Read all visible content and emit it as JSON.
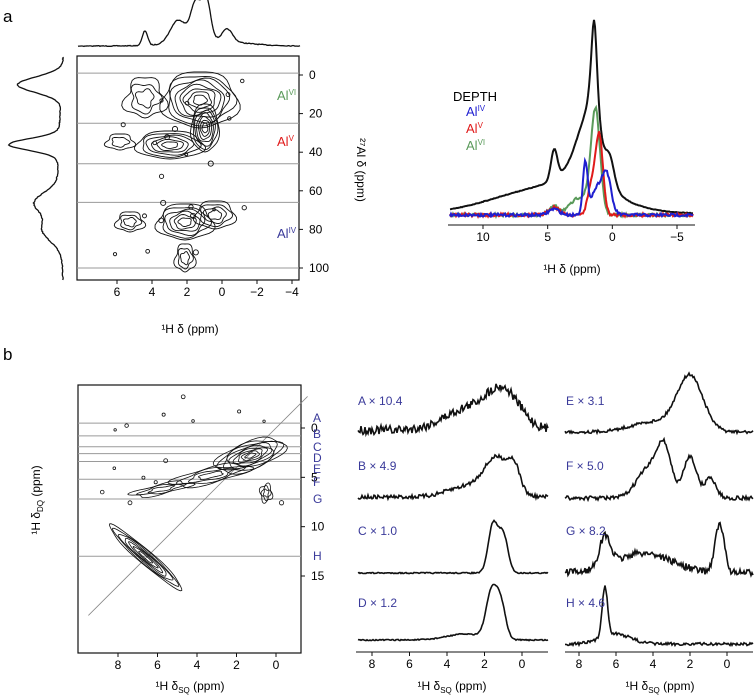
{
  "colors": {
    "black": "#111111",
    "grey": "#9a9a9a",
    "navy": "#3a3a9a",
    "blue": "#1f1fd0",
    "red": "#e01a1a",
    "green": "#5a9a5a"
  },
  "panel_a": {
    "label": "a",
    "x_label": "¹H δ (ppm)",
    "y_label": "²⁷Al δ (ppm)",
    "x_ticks": [
      "6",
      "4",
      "2",
      "0",
      "−2",
      "−4"
    ],
    "y_ticks": [
      "0",
      "20",
      "40",
      "60",
      "80",
      "100"
    ],
    "contour_labels": [
      {
        "base": "Al",
        "sup": "VI",
        "color": "#5a9a5a"
      },
      {
        "base": "Al",
        "sup": "V",
        "color": "#e01a1a"
      },
      {
        "base": "Al",
        "sup": "IV",
        "color": "#3a3a9a"
      }
    ],
    "slice_positions_ppm": [
      -1,
      25,
      46,
      66,
      100
    ]
  },
  "panel_a_spectra": {
    "x_label": "¹H δ (ppm)",
    "x_ticks": [
      "10",
      "5",
      "0",
      "−5"
    ],
    "legend_title": "DEPTH",
    "legend": [
      {
        "base": "Al",
        "sup": "IV",
        "color": "#1f1fd0"
      },
      {
        "base": "Al",
        "sup": "V",
        "color": "#e01a1a"
      },
      {
        "base": "Al",
        "sup": "VI",
        "color": "#5a9a5a"
      }
    ]
  },
  "panel_b": {
    "label": "b",
    "x_label": "¹H δ",
    "x_label_sub": "SQ",
    "x_label_unit": " (ppm)",
    "y_label": "¹H δ",
    "y_label_sub": "DQ",
    "y_label_unit": " (ppm)",
    "x_ticks": [
      "8",
      "6",
      "4",
      "2",
      "0"
    ],
    "y_ticks": [
      "0",
      "5",
      "10",
      "15"
    ],
    "slice_letters": [
      "A",
      "B",
      "C",
      "D",
      "E",
      "F",
      "G",
      "H"
    ],
    "slice_positions_ppm": [
      -0.5,
      0.8,
      1.9,
      2.6,
      3.4,
      5.2,
      7.2,
      13.0
    ]
  },
  "panel_b_slices": {
    "x_label": "¹H δ",
    "x_label_sub": "SQ",
    "x_label_unit": " (ppm)",
    "left_column": {
      "x_ticks": [
        "8",
        "6",
        "4",
        "2",
        "0"
      ],
      "labels": [
        "A × 10.4",
        "B × 4.9",
        "C × 1.0",
        "D × 1.2"
      ]
    },
    "right_column": {
      "x_ticks": [
        "8",
        "6",
        "4",
        "2",
        "0"
      ],
      "labels": [
        "E × 3.1",
        "F × 5.0",
        "G × 8.2",
        "H × 4.6"
      ]
    }
  }
}
